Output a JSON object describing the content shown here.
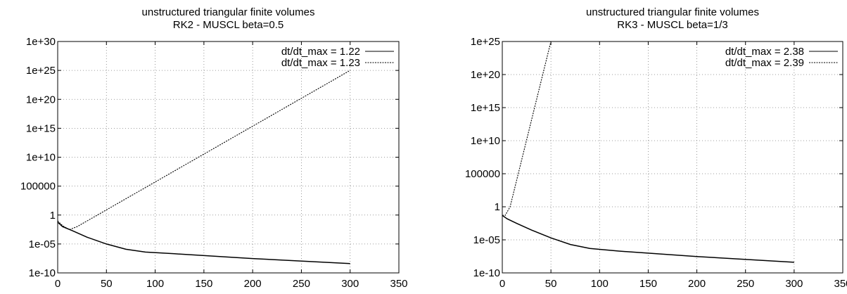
{
  "chart_data": [
    {
      "type": "line",
      "title": "unstructured triangular finite volumes",
      "subtitle": "RK2 - MUSCL beta=0.5",
      "xlabel": "",
      "ylabel": "",
      "xlim": [
        0,
        350
      ],
      "ylim": [
        1e-10,
        1e+30
      ],
      "yscale": "log",
      "grid": true,
      "legend_position": "top-right",
      "x_ticks": [
        "0",
        "50",
        "100",
        "150",
        "200",
        "250",
        "300",
        "350"
      ],
      "y_ticks": [
        "1e-10",
        "1e-05",
        "1",
        "100000",
        "1e+10",
        "1e+15",
        "1e+20",
        "1e+25",
        "1e+30"
      ],
      "series": [
        {
          "name": "dt/dt_max = 1.22",
          "style": "solid",
          "points": [
            [
              0,
              0.06
            ],
            [
              5,
              0.01
            ],
            [
              15,
              0.002
            ],
            [
              30,
              0.00015
            ],
            [
              50,
              1e-05
            ],
            [
              70,
              1.2e-06
            ],
            [
              90,
              4e-07
            ],
            [
              120,
              2e-07
            ],
            [
              200,
              3e-08
            ],
            [
              300,
              4e-09
            ]
          ]
        },
        {
          "name": "dt/dt_max = 1.23",
          "style": "dashed",
          "points": [
            [
              0,
              0.1
            ],
            [
              5,
              0.015
            ],
            [
              12,
              0.003
            ],
            [
              20,
              0.01
            ],
            [
              300,
              1e+25
            ]
          ]
        }
      ]
    },
    {
      "type": "line",
      "title": "unstructured triangular finite volumes",
      "subtitle": "RK3 - MUSCL beta=1/3",
      "xlabel": "",
      "ylabel": "",
      "xlim": [
        0,
        350
      ],
      "ylim": [
        1e-10,
        1e+25
      ],
      "yscale": "log",
      "grid": true,
      "legend_position": "top-right",
      "x_ticks": [
        "0",
        "50",
        "100",
        "150",
        "200",
        "250",
        "300",
        "350"
      ],
      "y_ticks": [
        "1e-10",
        "1e-05",
        "1",
        "100000",
        "1e+10",
        "1e+15",
        "1e+20",
        "1e+25"
      ],
      "series": [
        {
          "name": "dt/dt_max = 2.38",
          "style": "solid",
          "points": [
            [
              0,
              0.05
            ],
            [
              5,
              0.015
            ],
            [
              15,
              0.003
            ],
            [
              30,
              0.0003
            ],
            [
              50,
              2e-05
            ],
            [
              70,
              2e-06
            ],
            [
              90,
              5e-07
            ],
            [
              120,
              2e-07
            ],
            [
              200,
              3e-08
            ],
            [
              300,
              4e-09
            ]
          ]
        },
        {
          "name": "dt/dt_max = 2.39",
          "style": "dashed",
          "points": [
            [
              0,
              0.05
            ],
            [
              3,
              0.05
            ],
            [
              8,
              1
            ],
            [
              50,
              1e+25
            ]
          ]
        }
      ]
    }
  ]
}
